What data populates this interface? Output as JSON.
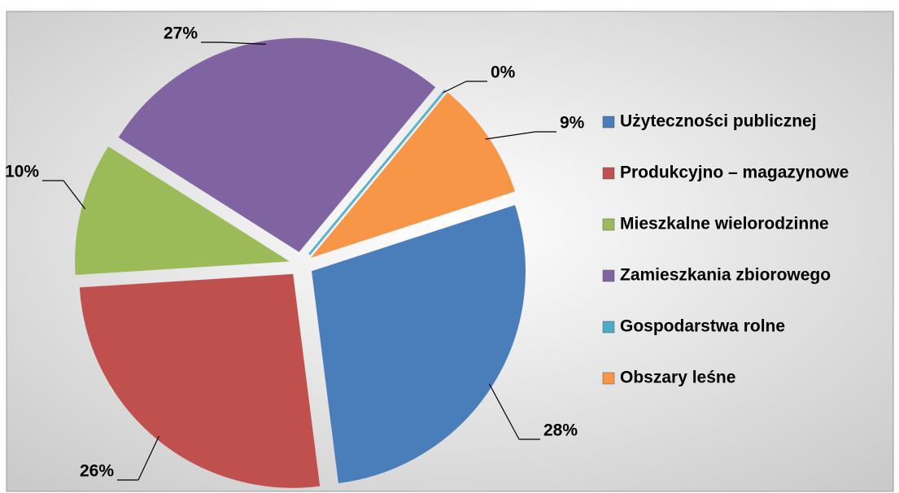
{
  "chart_data": {
    "type": "pie",
    "categories": [
      "Użyteczności publicznej",
      "Produkcyjno – magazynowe",
      "Mieszkalne wielorodzinne",
      "Zamieszkania zbiorowego",
      "Gospodarstwa rolne",
      "Obszary leśne"
    ],
    "values": [
      28,
      26,
      10,
      27,
      0,
      9
    ],
    "value_labels": [
      "28%",
      "26%",
      "10%",
      "27%",
      "0%",
      "9%"
    ],
    "colors": [
      "#4a7ebb",
      "#c0504d",
      "#9bbb59",
      "#8064a2",
      "#4bacc6",
      "#f79646"
    ],
    "legend": "right"
  }
}
